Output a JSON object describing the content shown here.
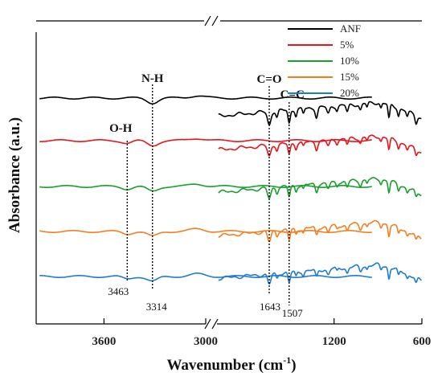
{
  "chart_data": {
    "type": "line",
    "xlabel": "Wavenumber (cm",
    "xlabel_sup": "-1",
    "xlabel_close": ")",
    "ylabel": "Absorbance (a.u.)",
    "x_axis": "reversed, broken between 3000 and 2000 cm-1",
    "x_ticks": [
      {
        "value": 3600,
        "label": "3600"
      },
      {
        "value": 3000,
        "label": "3000"
      },
      {
        "value": 1200,
        "label": "1200"
      },
      {
        "value": 600,
        "label": "600"
      }
    ],
    "legend_position": "top-right",
    "legend": [
      {
        "name": "ANF",
        "color": "#000000"
      },
      {
        "name": "5%",
        "color": "#e8141c"
      },
      {
        "name": "10%",
        "color": "#17a02c"
      },
      {
        "name": "15%",
        "color": "#f47f20"
      },
      {
        "name": "20%",
        "color": "#1f7bd0"
      }
    ],
    "band_labels": [
      {
        "text": "N-H",
        "x": 3314
      },
      {
        "text": "O-H",
        "x": 3463
      },
      {
        "text": "C=O",
        "x": 1643
      },
      {
        "text": "C=C",
        "x": 1507
      }
    ],
    "peak_labels": [
      {
        "text": "3463",
        "x": 3463
      },
      {
        "text": "3314",
        "x": 3314
      },
      {
        "text": "1643",
        "x": 1643
      },
      {
        "text": "1507",
        "x": 1507
      }
    ]
  }
}
